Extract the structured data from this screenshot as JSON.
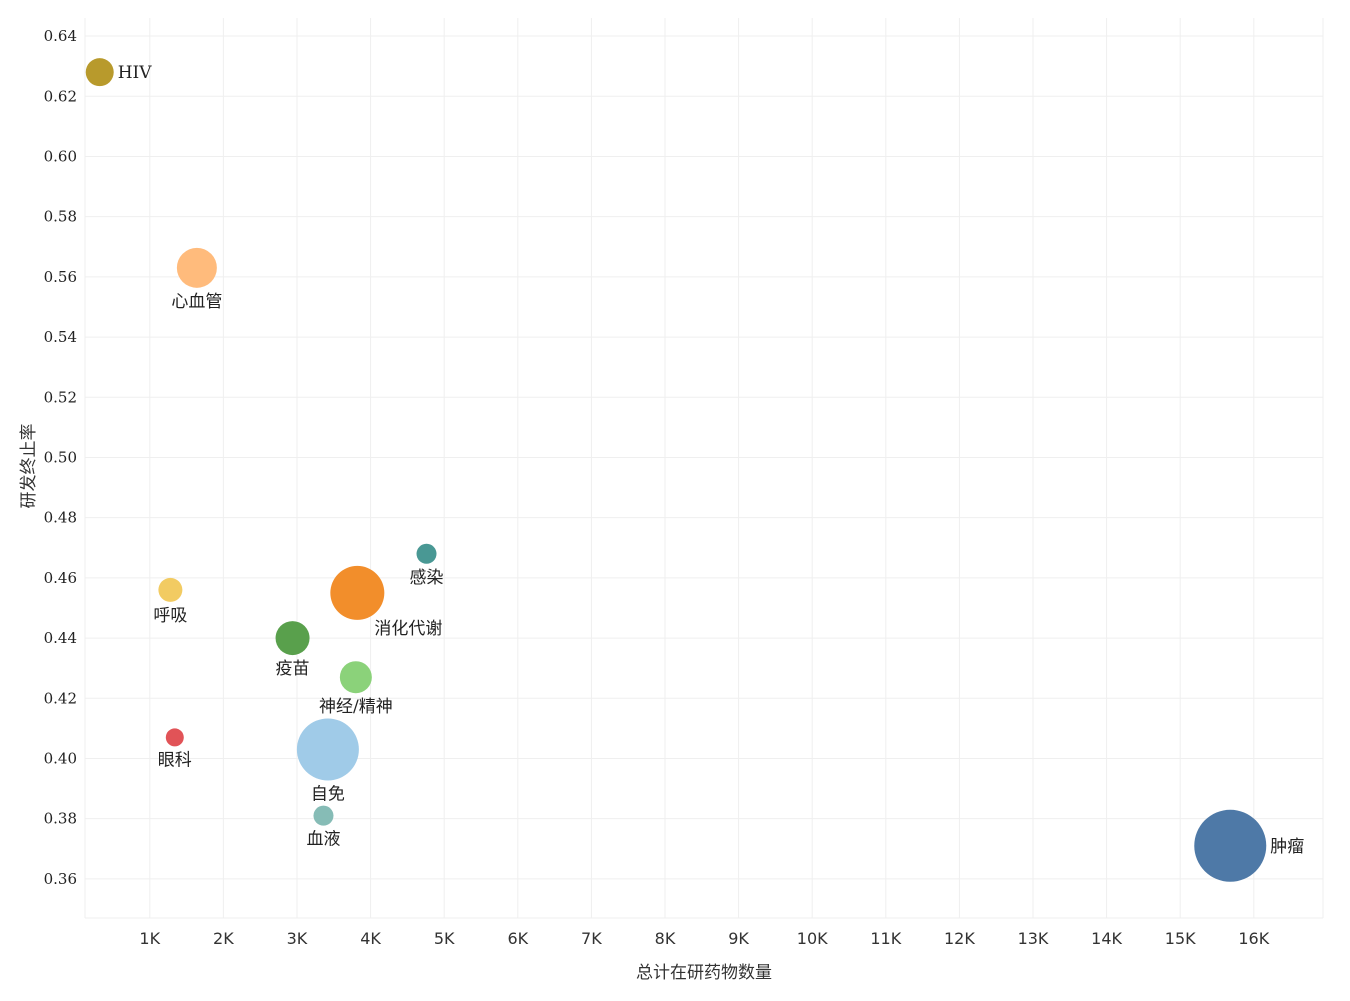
{
  "chart_data": {
    "type": "scatter",
    "xlabel": "总计在研药物数量",
    "ylabel": "研发终止率",
    "xlim": [
      120,
      16940
    ],
    "ylim": [
      0.347,
      0.646
    ],
    "x_ticks": [
      1000,
      2000,
      3000,
      4000,
      5000,
      6000,
      7000,
      8000,
      9000,
      10000,
      11000,
      12000,
      13000,
      14000,
      15000,
      16000
    ],
    "x_tick_labels": [
      "1K",
      "2K",
      "3K",
      "4K",
      "5K",
      "6K",
      "7K",
      "8K",
      "9K",
      "10K",
      "11K",
      "12K",
      "13K",
      "14K",
      "15K",
      "16K"
    ],
    "y_ticks": [
      0.36,
      0.38,
      0.4,
      0.42,
      0.44,
      0.46,
      0.48,
      0.5,
      0.52,
      0.54,
      0.56,
      0.58,
      0.6,
      0.62,
      0.64
    ],
    "y_tick_labels": [
      "0.36",
      "0.38",
      "0.40",
      "0.42",
      "0.44",
      "0.46",
      "0.48",
      "0.50",
      "0.52",
      "0.54",
      "0.56",
      "0.58",
      "0.60",
      "0.62",
      "0.64"
    ],
    "grid": true,
    "points": [
      {
        "label": "HIV",
        "x": 320,
        "y": 0.628,
        "size": 14,
        "color": "#b89a2c",
        "label_pos": "right"
      },
      {
        "label": "心血管",
        "x": 1640,
        "y": 0.563,
        "size": 20,
        "color": "#ffbb7c",
        "label_pos": "below"
      },
      {
        "label": "呼吸",
        "x": 1280,
        "y": 0.456,
        "size": 12,
        "color": "#f2cb62",
        "label_pos": "below"
      },
      {
        "label": "眼科",
        "x": 1340,
        "y": 0.407,
        "size": 9,
        "color": "#e15357",
        "label_pos": "below"
      },
      {
        "label": "疫苗",
        "x": 2940,
        "y": 0.44,
        "size": 17,
        "color": "#59a04c",
        "label_pos": "below"
      },
      {
        "label": "消化代谢",
        "x": 3820,
        "y": 0.455,
        "size": 27,
        "color": "#f28e2b",
        "label_pos": "below-right"
      },
      {
        "label": "感染",
        "x": 4760,
        "y": 0.468,
        "size": 10,
        "color": "#499894",
        "label_pos": "below"
      },
      {
        "label": "神经/精神",
        "x": 3800,
        "y": 0.427,
        "size": 16,
        "color": "#8bd27a",
        "label_pos": "below"
      },
      {
        "label": "自免",
        "x": 3420,
        "y": 0.403,
        "size": 31,
        "color": "#a0cbe8",
        "label_pos": "below"
      },
      {
        "label": "血液",
        "x": 3360,
        "y": 0.381,
        "size": 10,
        "color": "#86bcb6",
        "label_pos": "below"
      },
      {
        "label": "肿瘤",
        "x": 15680,
        "y": 0.371,
        "size": 36,
        "color": "#4e79a7",
        "label_pos": "right"
      }
    ]
  }
}
